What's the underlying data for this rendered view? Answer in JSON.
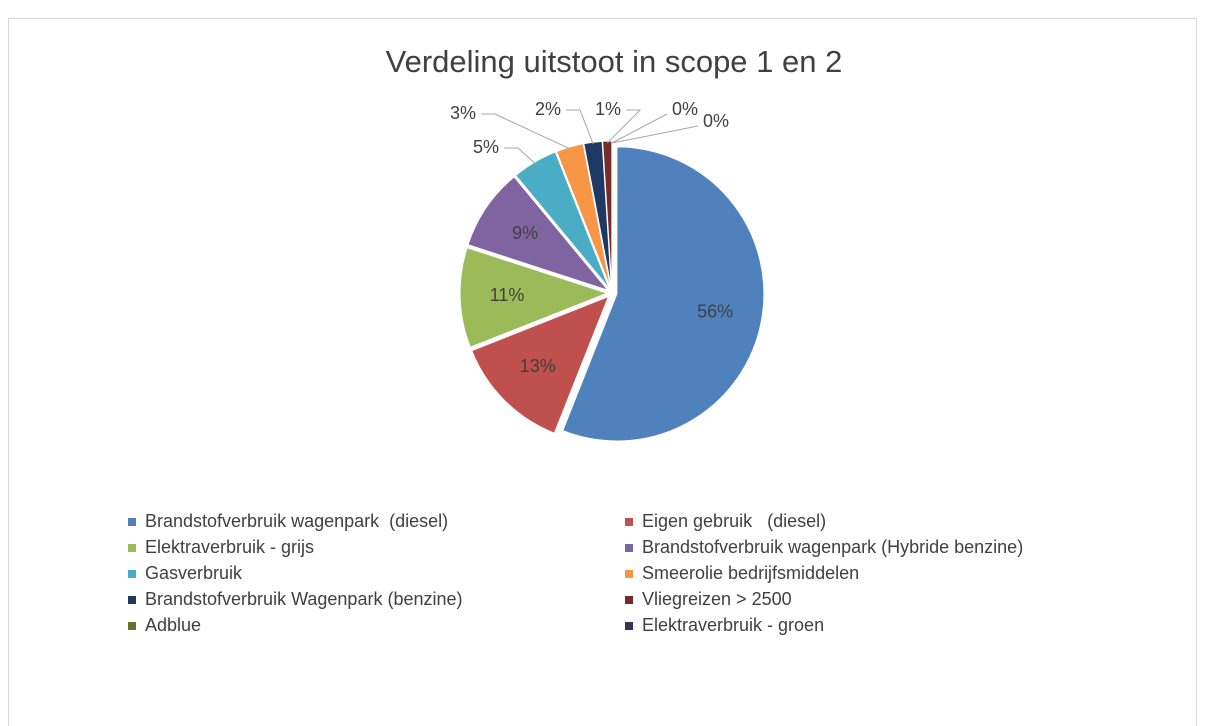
{
  "chart_data": {
    "type": "pie",
    "title": "Verdeling uitstoot in scope 1 en 2",
    "categories": [
      "Brandstofverbruik wagenpark  (diesel)",
      "Eigen gebruik   (diesel)",
      "Elektraverbruik - grijs",
      "Brandstofverbruik wagenpark (Hybride benzine)",
      "Gasverbruik",
      "Smeerolie bedrijfsmiddelen",
      "Brandstofverbruik Wagenpark (benzine)",
      "Vliegreizen > 2500",
      "Adblue",
      "Elektraverbruik - groen"
    ],
    "values": [
      56,
      13,
      11,
      9,
      5,
      3,
      2,
      1,
      0,
      0
    ],
    "value_labels": [
      "56%",
      "13%",
      "11%",
      "9%",
      "5%",
      "3%",
      "2%",
      "1%",
      "0%",
      "0%"
    ],
    "colors": [
      "#4f81bd",
      "#c0504d",
      "#9bbb59",
      "#8064a2",
      "#4bacc6",
      "#f79646",
      "#1f3864",
      "#772c2a",
      "#5f7530",
      "#3f3151"
    ],
    "legend": "bottom"
  }
}
